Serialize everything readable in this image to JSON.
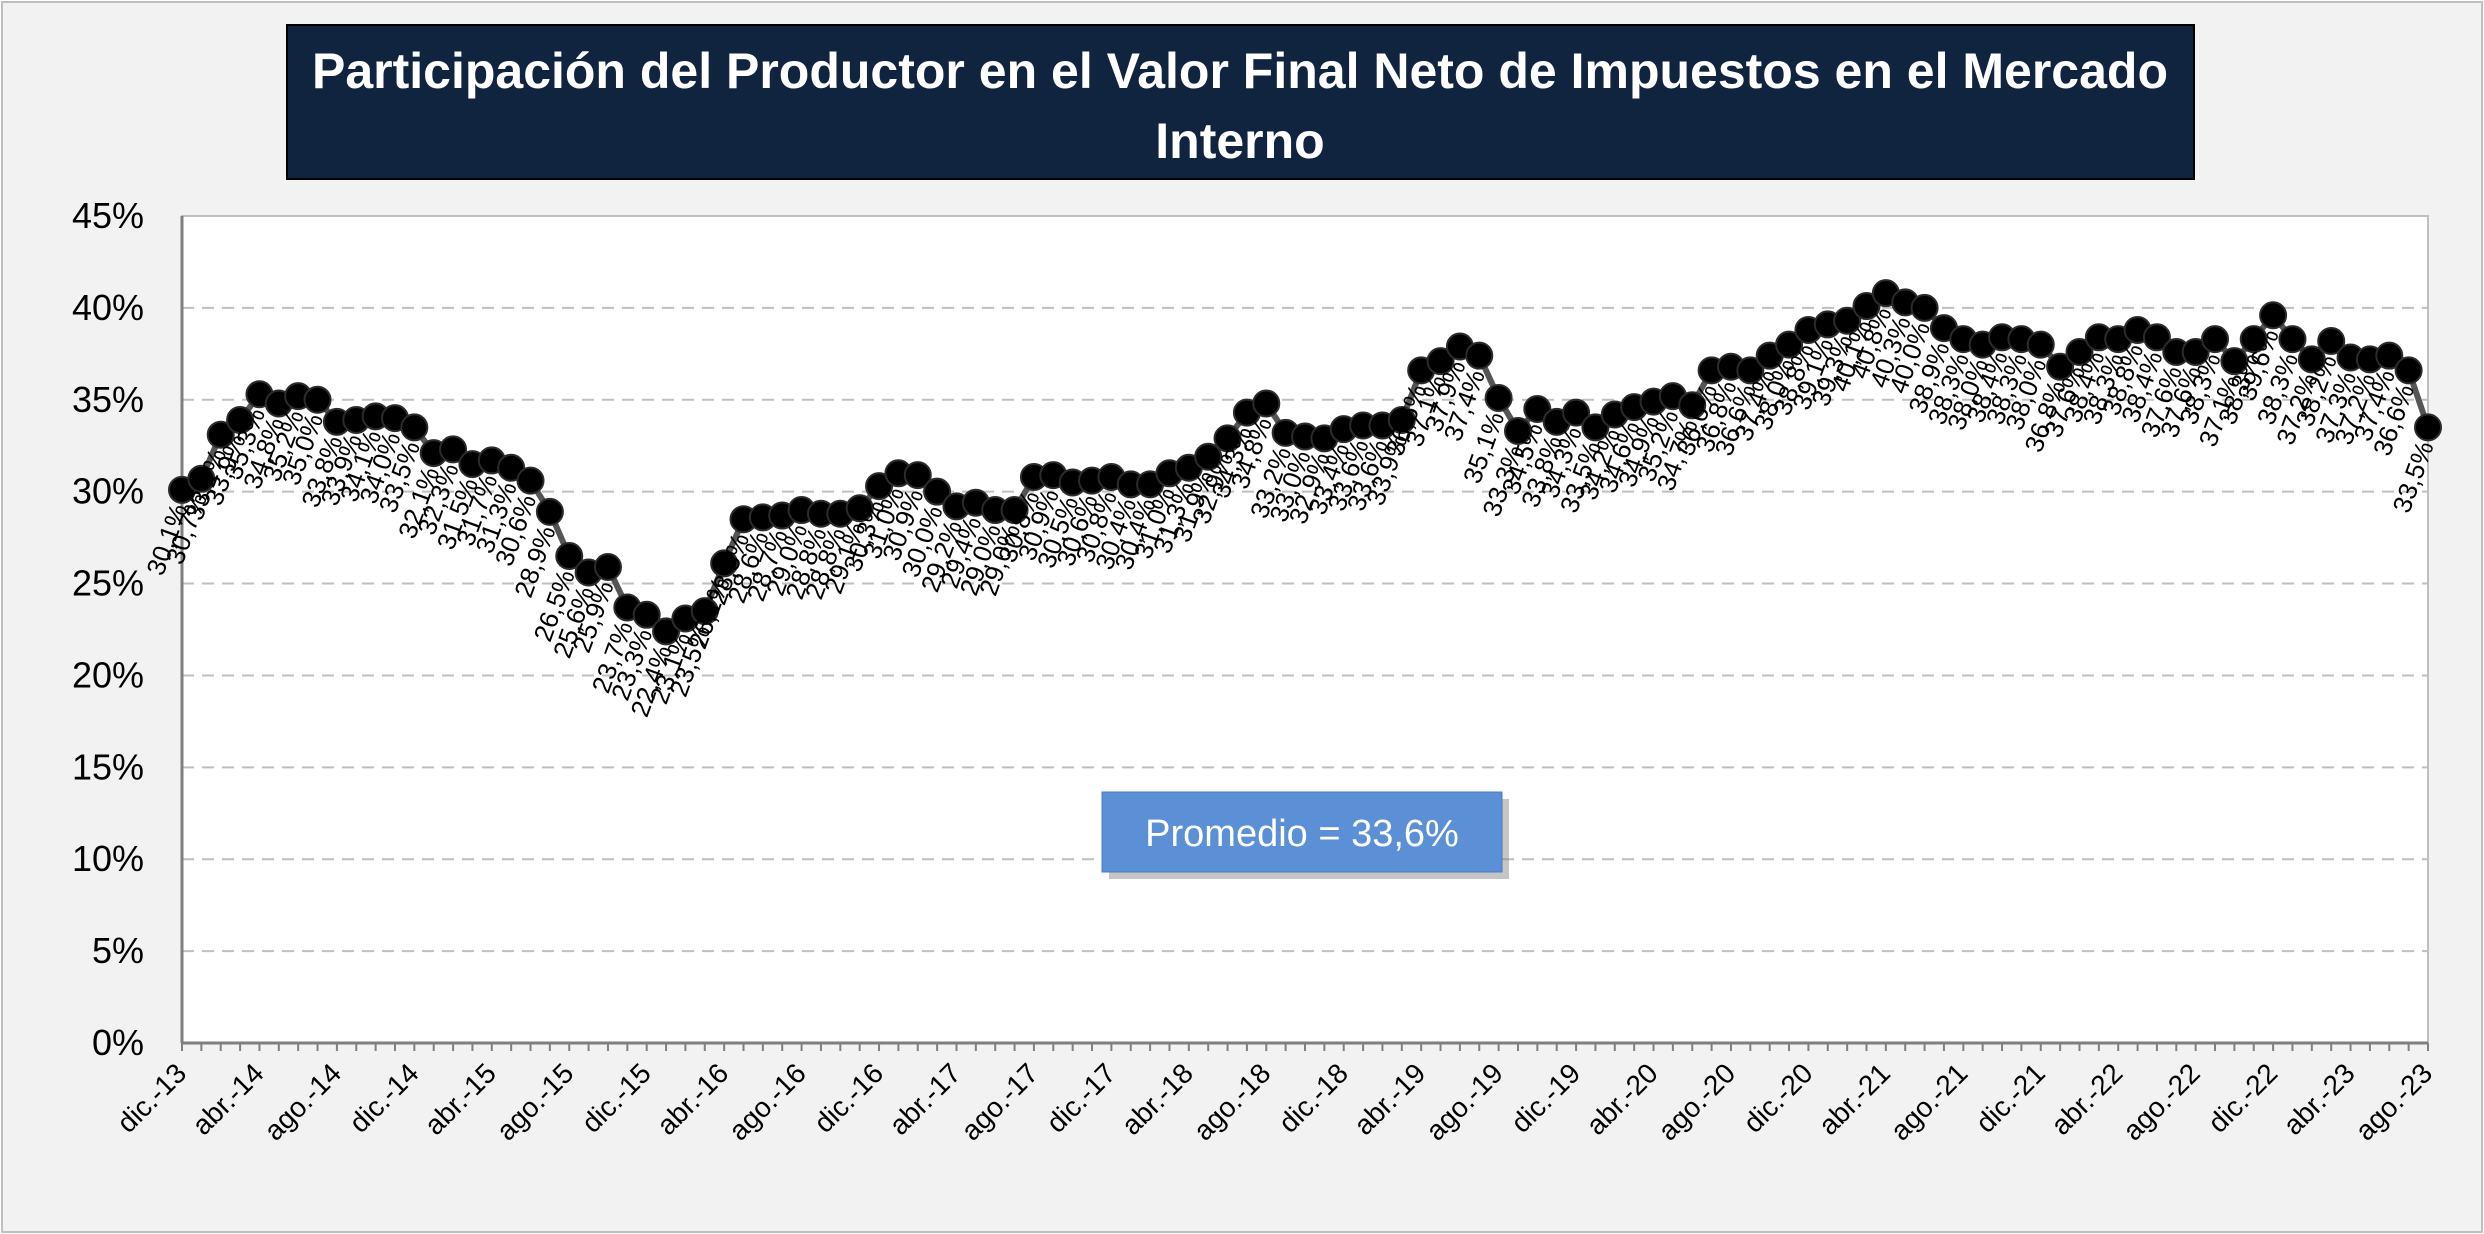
{
  "chart_data": {
    "type": "line",
    "title_lines": [
      "Participación del Productor en el Valor Final Neto de Impuestos en el Mercado",
      "Interno"
    ],
    "xlabel": "",
    "ylabel": "",
    "ylim": [
      0,
      45
    ],
    "y_ticks": [
      "0%",
      "5%",
      "10%",
      "15%",
      "20%",
      "25%",
      "30%",
      "35%",
      "40%",
      "45%"
    ],
    "x_tick_labels": [
      "dic.-13",
      "abr.-14",
      "ago.-14",
      "dic.-14",
      "abr.-15",
      "ago.-15",
      "dic.-15",
      "abr.-16",
      "ago.-16",
      "dic.-16",
      "abr.-17",
      "ago.-17",
      "dic.-17",
      "abr.-18",
      "ago.-18",
      "dic.-18",
      "abr.-19",
      "ago.-19",
      "dic.-19",
      "abr.-20",
      "ago.-20",
      "dic.-20",
      "abr.-21",
      "ago.-21",
      "dic.-21",
      "abr.-22",
      "ago.-22",
      "dic.-22",
      "abr.-23",
      "ago.-23"
    ],
    "grid": true,
    "legend": "none",
    "annotation": "Promedio = 33,6%",
    "colors": {
      "title_bg": "#10233f",
      "marker": "#000000",
      "line": "#555555",
      "grid": "#bfbfbf",
      "annotation_bg": "#5b8fd6",
      "outer_bg": "#f2f2f2"
    },
    "series": [
      {
        "values": [
          30.1,
          30.7,
          33.1,
          33.9,
          35.3,
          34.8,
          35.2,
          35.0,
          33.8,
          33.9,
          34.1,
          34.0,
          33.5,
          32.1,
          32.3,
          31.5,
          31.7,
          31.3,
          30.6,
          28.9,
          26.5,
          25.6,
          25.9,
          23.7,
          23.3,
          22.4,
          23.1,
          23.5,
          26.1,
          28.5,
          28.6,
          28.7,
          29.0,
          28.8,
          28.8,
          29.1,
          30.3,
          31.0,
          30.9,
          30.0,
          29.2,
          29.4,
          29.0,
          29.0,
          30.8,
          30.9,
          30.5,
          30.6,
          30.8,
          30.4,
          30.4,
          31.0,
          31.3,
          31.9,
          32.9,
          34.3,
          34.8,
          33.2,
          33.0,
          32.9,
          33.4,
          33.6,
          33.6,
          33.9,
          36.6,
          37.1,
          37.9,
          37.4,
          35.1,
          33.3,
          34.5,
          33.8,
          34.3,
          33.5,
          34.2,
          34.6,
          34.9,
          35.2,
          34.7,
          36.6,
          36.8,
          36.6,
          37.4,
          38.0,
          38.8,
          39.1,
          39.3,
          40.1,
          40.8,
          40.3,
          40.0,
          38.9,
          38.3,
          38.0,
          38.4,
          38.3,
          38.0,
          36.8,
          37.6,
          38.4,
          38.3,
          38.8,
          38.4,
          37.6,
          37.6,
          38.3,
          37.1,
          38.3,
          39.6,
          38.3,
          37.2,
          38.2,
          37.3,
          37.2,
          37.4,
          36.6,
          33.5
        ],
        "labels": [
          "30,1%",
          "30,7%",
          "33,1%",
          "33,9%",
          "35,3%",
          "34,8%",
          "35,2%",
          "35,0%",
          "33,8%",
          "33,9%",
          "34,1%",
          "34,0%",
          "33,5%",
          "32,1%",
          "32,3%",
          "31,5%",
          "31,7%",
          "31,3%",
          "30,6%",
          "28,9%",
          "26,5%",
          "25,6%",
          "25,9%",
          "23,7%",
          "23,3%",
          "22,4%",
          "23,1%",
          "23,5%",
          "26,1%",
          "28,5%",
          "28,6%",
          "28,7%",
          "29,0%",
          "28,8%",
          "28,8%",
          "29,1%",
          "30,3%",
          "31,0%",
          "30,9%",
          "30,0%",
          "29,2%",
          "29,4%",
          "29,0%",
          "29,0%",
          "30,8%",
          "30,9%",
          "30,5%",
          "30,6%",
          "30,8%",
          "30,4%",
          "30,4%",
          "31,0%",
          "31,3%",
          "31,9%",
          "32,9%",
          "34,3%",
          "34,8%",
          "33,2%",
          "33,0%",
          "32,9%",
          "33,4%",
          "33,6%",
          "33,6%",
          "33,9%",
          "36,6%",
          "37,1%",
          "37,9%",
          "37,4%",
          "35,1%",
          "33,3%",
          "34,5%",
          "33,8%",
          "34,3%",
          "33,5%",
          "34,2%",
          "34,6%",
          "34,9%",
          "35,2%",
          "34,7%",
          "36,6%",
          "36,8%",
          "36,6%",
          "37,4%",
          "38,0%",
          "38,8%",
          "39,1%",
          "39,3%",
          "40,1%",
          "40,8%",
          "40,3%",
          "40,0%",
          "38,9%",
          "38,3%",
          "38,0%",
          "38,4%",
          "38,3%",
          "38,0%",
          "36,8%",
          "37,6%",
          "38,4%",
          "38,3%",
          "38,8%",
          "38,4%",
          "37,6%",
          "37,6%",
          "38,3%",
          "37,1%",
          "38,3%",
          "39,6%",
          "38,3%",
          "37,2%",
          "38,2%",
          "37,3%",
          "37,2%",
          "37,4%",
          "36,6%",
          "33,5%"
        ]
      }
    ]
  }
}
